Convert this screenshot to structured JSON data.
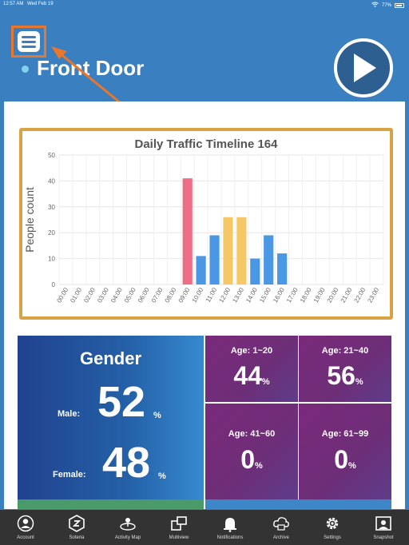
{
  "status_bar": {
    "time": "12:57 AM",
    "date": "Wed Feb 19",
    "battery": "77%"
  },
  "header": {
    "title": "Front Door"
  },
  "chart_data": {
    "type": "bar",
    "title": "Daily Traffic Timeline 164",
    "ylabel": "People count",
    "xlabel": "",
    "ylim": [
      0,
      50
    ],
    "yticks": [
      "0",
      "10",
      "20",
      "30",
      "40",
      "50"
    ],
    "grid": true,
    "categories": [
      "00:00",
      "01:00",
      "02:00",
      "03:00",
      "04:00",
      "05:00",
      "06:00",
      "07:00",
      "08:00",
      "09:00",
      "10:00",
      "11:00",
      "12:00",
      "13:00",
      "14:00",
      "15:00",
      "16:00",
      "17:00",
      "18:00",
      "19:00",
      "20:00",
      "21:00",
      "22:00",
      "23:00"
    ],
    "values": [
      0,
      0,
      0,
      0,
      0,
      0,
      0,
      0,
      0,
      41,
      11,
      19,
      26,
      26,
      10,
      19,
      12,
      0,
      0,
      0,
      0,
      0,
      0,
      0
    ],
    "bar_colors": [
      "#ed6d86",
      "#4a98e5",
      "#4a98e5",
      "#f6c766",
      "#f6c766",
      "#4a98e5",
      "#4a98e5",
      "#4a98e5"
    ],
    "colors": {
      "peak": "#ed6d86",
      "high": "#f6c766",
      "normal": "#4a98e5"
    }
  },
  "gender": {
    "title": "Gender",
    "male_label": "Male:",
    "male_value": "52",
    "female_label": "Female:",
    "female_value": "48",
    "unit": "%"
  },
  "ages": [
    {
      "label": "Age: 1~20",
      "value": "44",
      "unit": "%"
    },
    {
      "label": "Age: 21~40",
      "value": "56",
      "unit": "%"
    },
    {
      "label": "Age: 41~60",
      "value": "0",
      "unit": "%"
    },
    {
      "label": "Age: 61~99",
      "value": "0",
      "unit": "%"
    }
  ],
  "nav": [
    {
      "label": "Account",
      "icon": "account-icon"
    },
    {
      "label": "Soteria",
      "icon": "soteria-icon"
    },
    {
      "label": "Activity Map",
      "icon": "activity-map-icon"
    },
    {
      "label": "Multiview",
      "icon": "multiview-icon"
    },
    {
      "label": "Notifications",
      "icon": "notifications-icon"
    },
    {
      "label": "Archive",
      "icon": "archive-icon"
    },
    {
      "label": "Settings",
      "icon": "gear-icon"
    },
    {
      "label": "Snapshot",
      "icon": "snapshot-icon"
    }
  ]
}
